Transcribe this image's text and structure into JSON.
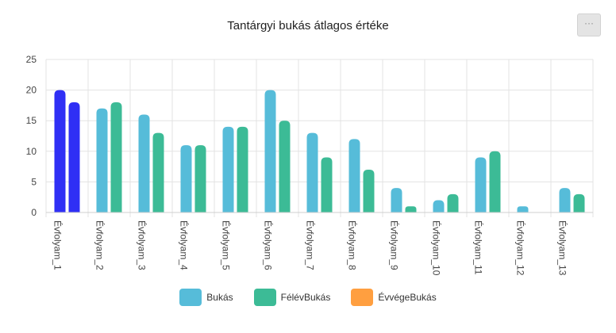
{
  "toolbar": {
    "menu_label": "···"
  },
  "colors": {
    "highlight": "#2f2ff5",
    "Bukás": "#56bcd9",
    "FélévBukás": "#3cbb96",
    "ÉvvégeBukás": "#ff9f40",
    "grid": "#e3e3e3",
    "axis_text": "#444444"
  },
  "chart_data": {
    "type": "bar",
    "title": "Tantárgyi bukás átlagos értéke",
    "xlabel": "",
    "ylabel": "",
    "ylim": [
      0,
      25
    ],
    "yticks": [
      0,
      5,
      10,
      15,
      20,
      25
    ],
    "grid": true,
    "legend_position": "bottom",
    "categories": [
      "Évfolyam_1",
      "Évfolyam_2",
      "Évfolyam_3",
      "Évfolyam_4",
      "Évfolyam_5",
      "Évfolyam_6",
      "Évfolyam_7",
      "Évfolyam_8",
      "Évfolyam_9",
      "Évfolyam_10",
      "Évfolyam_11",
      "Évfolyam_12",
      "Évfolyam_13"
    ],
    "highlighted_category": "Évfolyam_1",
    "series": [
      {
        "name": "Bukás",
        "values": [
          20,
          17,
          16,
          11,
          14,
          20,
          13,
          12,
          4,
          2,
          9,
          1,
          4
        ]
      },
      {
        "name": "FélévBukás",
        "values": [
          18,
          18,
          13,
          11,
          14,
          15,
          9,
          7,
          1,
          3,
          10,
          0,
          3
        ]
      },
      {
        "name": "ÉvvégeBukás",
        "values": [
          0,
          0,
          0,
          0,
          0,
          0,
          0,
          0,
          0,
          0,
          0,
          0,
          0
        ]
      }
    ]
  }
}
